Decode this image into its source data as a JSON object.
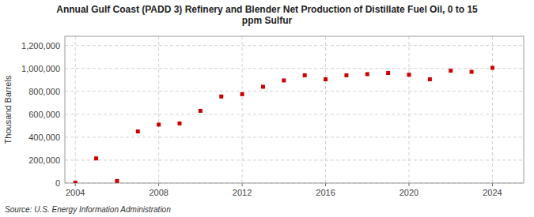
{
  "chart_data": {
    "type": "scatter",
    "title": "Annual Gulf Coast (PADD 3) Refinery and Blender Net Production of Distillate Fuel Oil, 0 to 15\nppm Sulfur",
    "y_label": "Thousand Barrels",
    "source": "Source: U.S. Energy Information Administration",
    "x": [
      2004,
      2005,
      2006,
      2007,
      2008,
      2009,
      2010,
      2011,
      2012,
      2013,
      2014,
      2015,
      2016,
      2017,
      2018,
      2019,
      2020,
      2021,
      2022,
      2023,
      2024
    ],
    "values": [
      3000,
      215000,
      18000,
      450000,
      510000,
      520000,
      630000,
      755000,
      775000,
      840000,
      895000,
      940000,
      905000,
      940000,
      950000,
      960000,
      945000,
      905000,
      980000,
      970000,
      1005000
    ],
    "color": "#cc0000",
    "marker": "square",
    "xlim": [
      2003.5,
      2025.5
    ],
    "xticks": [
      2004,
      2008,
      2012,
      2016,
      2020,
      2024
    ],
    "ylim": [
      0,
      1280000
    ],
    "yticks": [
      0,
      {
        "value": 200000,
        "label": "200,000"
      },
      {
        "value": 400000,
        "label": "400,000"
      },
      {
        "value": 600000,
        "label": "600,000"
      },
      {
        "value": 800000,
        "label": "800,000"
      },
      {
        "value": 1000000,
        "label": "1,000,000"
      },
      {
        "value": 1200000,
        "label": "1,200,000"
      }
    ],
    "grid": true
  }
}
